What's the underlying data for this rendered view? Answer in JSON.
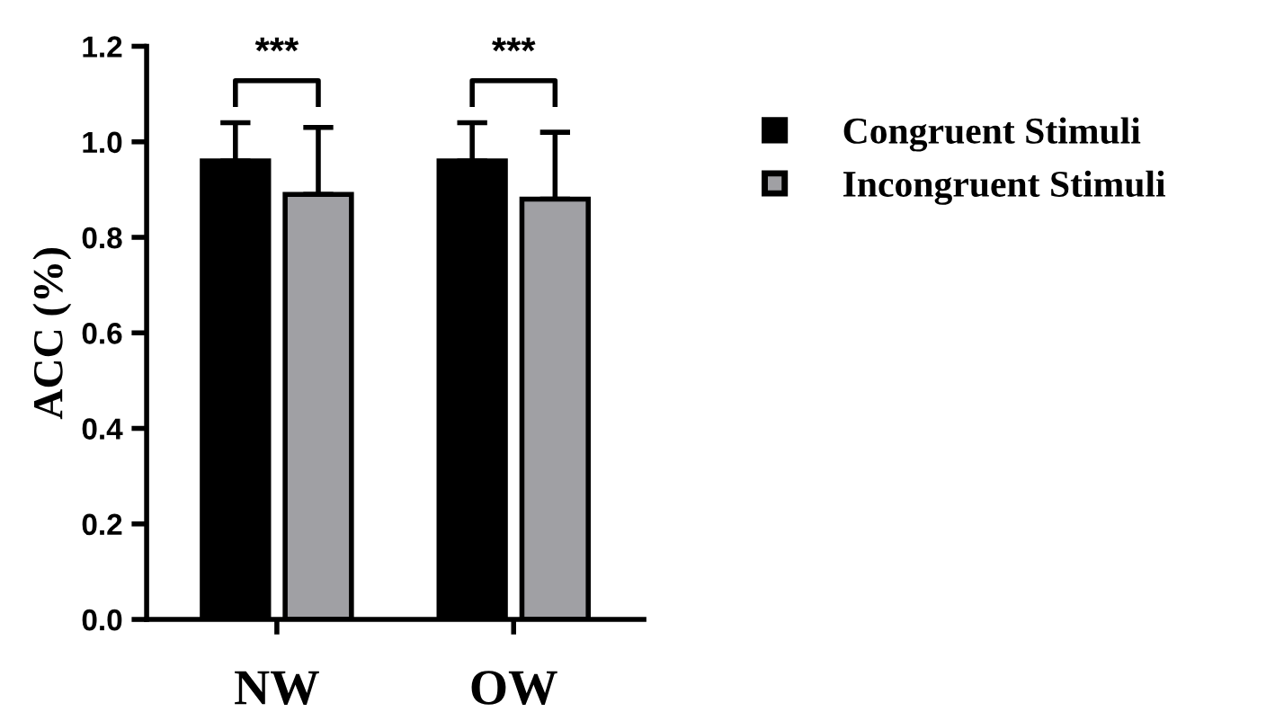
{
  "chart_data": {
    "type": "bar",
    "ylabel": "ACC (%)",
    "categories": [
      "NW",
      "OW"
    ],
    "series": [
      {
        "name": "Congruent Stimuli",
        "color": "#000000",
        "values": [
          0.96,
          0.96
        ],
        "errors": [
          [
            0.96,
            1.04
          ],
          [
            0.96,
            1.04
          ]
        ]
      },
      {
        "name": "Incongruent Stimuli",
        "color": "#a0a0a4",
        "values": [
          0.89,
          0.88
        ],
        "errors": [
          [
            0.89,
            1.03
          ],
          [
            0.88,
            1.02
          ]
        ]
      }
    ],
    "ylim": [
      0,
      1.2
    ],
    "yticks": [
      {
        "value": 0,
        "label": "0.0"
      },
      {
        "value": 0.2,
        "label": "0.2"
      },
      {
        "value": 0.4,
        "label": "0.4"
      },
      {
        "value": 0.6,
        "label": "0.6"
      },
      {
        "value": 0.8,
        "label": "0.8"
      },
      {
        "value": 1,
        "label": "1.0"
      },
      {
        "value": 1.2,
        "label": "1.2"
      }
    ],
    "grid": false,
    "legend": "right",
    "annotations": [
      "***",
      "***"
    ]
  }
}
